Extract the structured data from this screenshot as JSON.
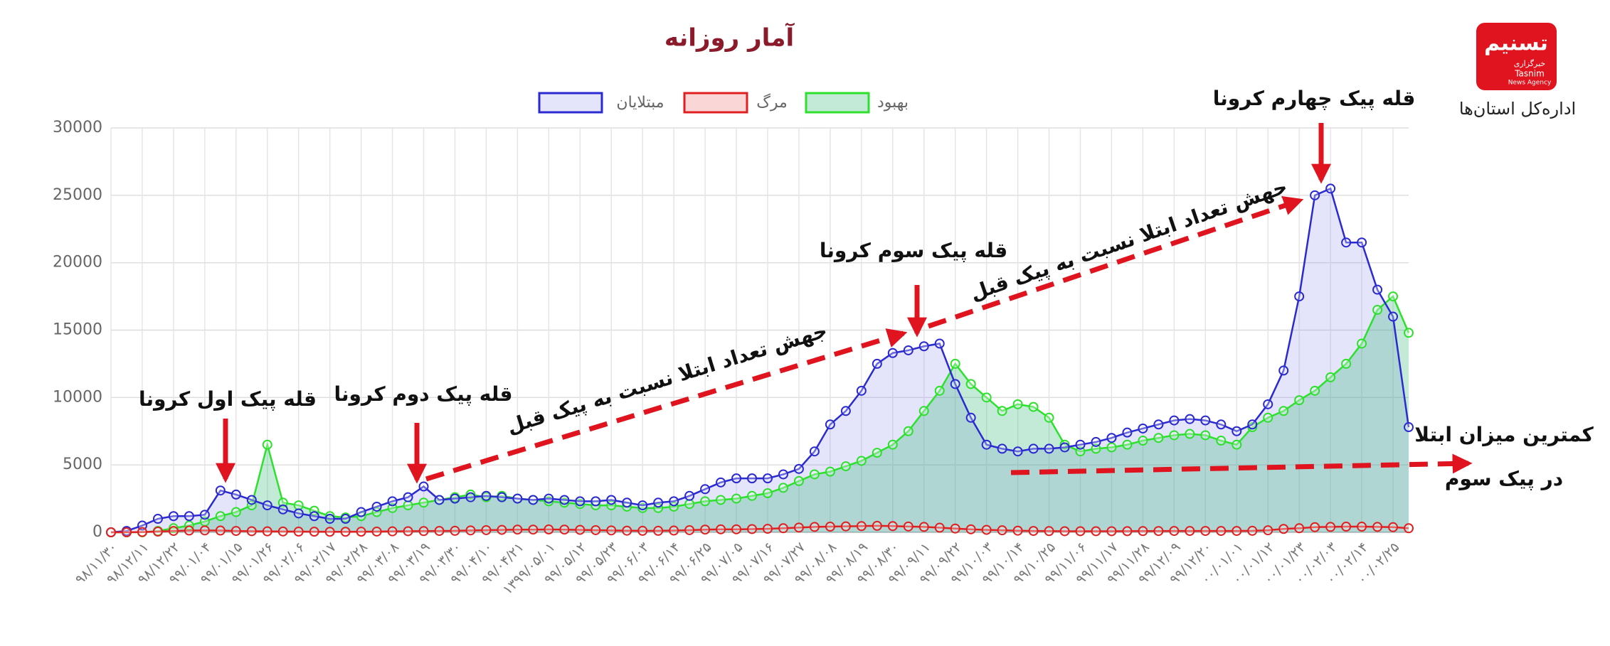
{
  "chart_data": {
    "type": "line",
    "title": "آمار روزانه",
    "categories": [
      "۹۸/۱۱/۳۰",
      null,
      "۹۸/۱۲/۱۱",
      null,
      "۹۸/۱۲/۲۲",
      null,
      "۹۹/۰۱/۰۴",
      null,
      "۹۹/۰۱/۱۵",
      null,
      "۹۹/۰۱/۲۶",
      null,
      "۹۹/۰۲/۰۶",
      null,
      "۹۹/۰۲/۱۷",
      null,
      "۹۹/۰۲/۲۸",
      null,
      "۹۹/۰۳/۰۸",
      null,
      "۹۹/۰۳/۱۹",
      null,
      "۹۹/۰۳/۳۰",
      null,
      "۹۹/۰۴/۱۰",
      null,
      "۹۹/۰۴/۲۱",
      null,
      "۱۳۹۹/۰۵/۰۱",
      null,
      "۹۹/۰۵/۱۲",
      null,
      "۹۹/۰۵/۲۳",
      null,
      "۹۹/۰۶/۰۳",
      null,
      "۹۹/۰۶/۱۴",
      null,
      "۹۹/۰۶/۲۵",
      null,
      "۹۹/۰۷/۰۵",
      null,
      "۹۹/۰۷/۱۶",
      null,
      "۹۹/۰۷/۲۷",
      null,
      "۹۹/۰۸/۰۸",
      null,
      "۹۹/۰۸/۱۹",
      null,
      "۹۹/۰۸/۳۰",
      null,
      "۹۹/۰۹/۱۱",
      null,
      "۹۹/۰۹/۲۲",
      null,
      "۹۹/۱۰/۰۳",
      null,
      "۹۹/۱۰/۱۴",
      null,
      "۹۹/۱۰/۲۵",
      null,
      "۹۹/۱۱/۰۶",
      null,
      "۹۹/۱۱/۱۷",
      null,
      "۹۹/۱۱/۲۸",
      null,
      "۹۹/۱۲/۰۹",
      null,
      "۹۹/۱۲/۲۰",
      null,
      "۰۰/۰۱/۰۱",
      null,
      "۰۰/۰۱/۱۲",
      null,
      "۰۰/۰۱/۲۳",
      null,
      "۰۰/۰۲/۰۳",
      null,
      "۰۰/۰۲/۱۴",
      null,
      "۰۰/۰۲/۲۵",
      null
    ],
    "series": [
      {
        "name": "مبتلایان",
        "color": "#2a2ad0",
        "fill": "rgba(130,130,230,0.22)",
        "values": [
          0,
          100,
          500,
          1000,
          1200,
          1200,
          1300,
          3100,
          2800,
          2400,
          2000,
          1700,
          1400,
          1200,
          1000,
          1000,
          1500,
          1900,
          2300,
          2600,
          3400,
          2400,
          2500,
          2600,
          2700,
          2600,
          2500,
          2400,
          2500,
          2400,
          2300,
          2300,
          2400,
          2200,
          2000,
          2200,
          2300,
          2700,
          3200,
          3700,
          4000,
          4000,
          4000,
          4300,
          4700,
          6000,
          8000,
          9000,
          10500,
          12500,
          13300,
          13500,
          13800,
          14000,
          11000,
          8500,
          6500,
          6200,
          6000,
          6200,
          6200,
          6300,
          6500,
          6700,
          7000,
          7400,
          7700,
          8000,
          8300,
          8400,
          8300,
          8000,
          7500,
          8000,
          9500,
          12000,
          17500,
          25000,
          25500,
          21500,
          21500,
          18000,
          16000,
          7800
        ]
      },
      {
        "name": "مرگ",
        "color": "#e02020",
        "values": [
          0,
          0,
          20,
          50,
          100,
          130,
          140,
          130,
          100,
          80,
          70,
          60,
          50,
          45,
          40,
          40,
          45,
          55,
          70,
          80,
          90,
          100,
          110,
          140,
          160,
          180,
          200,
          200,
          210,
          200,
          180,
          160,
          140,
          120,
          110,
          110,
          130,
          160,
          200,
          220,
          220,
          240,
          260,
          300,
          350,
          400,
          420,
          440,
          460,
          480,
          460,
          430,
          400,
          340,
          280,
          220,
          180,
          150,
          120,
          100,
          90,
          80,
          80,
          80,
          80,
          85,
          90,
          95,
          100,
          100,
          100,
          100,
          100,
          110,
          150,
          250,
          300,
          380,
          400,
          420,
          420,
          400,
          380,
          300
        ]
      },
      {
        "name": "بهبود",
        "color": "#2ee02e",
        "fill": "rgba(40,180,110,0.28)",
        "values": [
          0,
          0,
          0,
          100,
          300,
          500,
          800,
          1200,
          1500,
          2000,
          6500,
          2200,
          2000,
          1600,
          1200,
          1100,
          1200,
          1500,
          1800,
          2000,
          2200,
          2400,
          2600,
          2800,
          2600,
          2700,
          2500,
          2400,
          2300,
          2200,
          2100,
          2000,
          2000,
          1900,
          1800,
          1800,
          1900,
          2100,
          2300,
          2400,
          2500,
          2700,
          2900,
          3300,
          3800,
          4300,
          4500,
          4900,
          5300,
          5900,
          6500,
          7500,
          9000,
          10500,
          12500,
          11000,
          10000,
          9000,
          9500,
          9300,
          8500,
          6500,
          6000,
          6200,
          6300,
          6500,
          6800,
          7000,
          7200,
          7300,
          7200,
          6800,
          6500,
          7800,
          8500,
          9000,
          9800,
          10500,
          11500,
          12500,
          14000,
          16500,
          17500,
          14800
        ]
      }
    ],
    "ylim": [
      0,
      30000
    ],
    "yticks": [
      0,
      5000,
      10000,
      15000,
      20000,
      25000,
      30000
    ],
    "grid": true,
    "legend": "top",
    "annotations": [
      "قله پیک اول کرونا",
      "قله پیک دوم کرونا",
      "جهش تعداد ابتلا نسبت به پیک قبل",
      "قله پیک سوم کرونا",
      "جهش تعداد ابتلا نسبت به پیک قبل",
      "قله پیک چهارم کرونا",
      "کمترین میزان ابتلا",
      "در پیک سوم"
    ]
  },
  "branding": {
    "logo": "تسنیم",
    "logo_small": "خبرگزاری",
    "logo_en": "Tasnim",
    "logo_en_sub": "News Agency",
    "department": "اداره‌کل استان‌ها"
  }
}
